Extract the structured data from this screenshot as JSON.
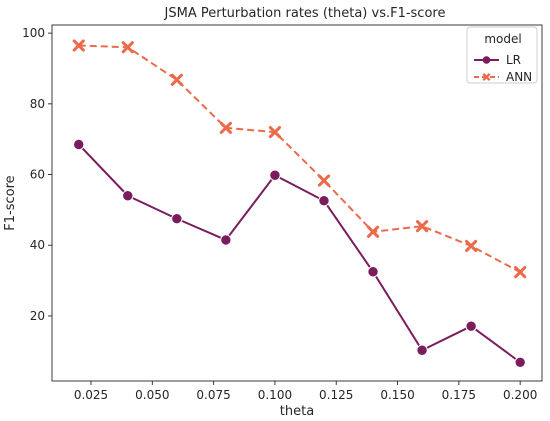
{
  "chart_data": {
    "type": "line",
    "title": "JSMA Perturbation rates (theta) vs.F1-score",
    "xlabel": "theta",
    "ylabel": "F1-score",
    "x": [
      0.02,
      0.04,
      0.06,
      0.08,
      0.1,
      0.12,
      0.14,
      0.16,
      0.18,
      0.2
    ],
    "xlim": [
      0.0091,
      0.2089
    ],
    "ylim": [
      1.6,
      102.3
    ],
    "xticks": [
      "0.025",
      "0.050",
      "0.075",
      "0.100",
      "0.125",
      "0.150",
      "0.175",
      "0.200"
    ],
    "xtick_values": [
      0.025,
      0.05,
      0.075,
      0.1,
      0.125,
      0.15,
      0.175,
      0.2
    ],
    "yticks": [
      "20",
      "40",
      "60",
      "80",
      "100"
    ],
    "ytick_values": [
      20,
      40,
      60,
      80,
      100
    ],
    "legend": {
      "title": "model",
      "position": "top-right"
    },
    "series": [
      {
        "name": "LR",
        "color": "#7a1c5d",
        "marker": "circle",
        "line_style": "solid",
        "values": [
          68.5,
          54.0,
          47.5,
          41.5,
          59.8,
          52.6,
          32.5,
          10.3,
          17.1,
          6.9
        ]
      },
      {
        "name": "ANN",
        "color": "#ec6a4a",
        "marker": "x",
        "line_style": "dashed",
        "values": [
          96.5,
          96.0,
          86.8,
          73.2,
          72.0,
          58.3,
          43.8,
          45.4,
          39.8,
          32.4
        ]
      }
    ]
  }
}
